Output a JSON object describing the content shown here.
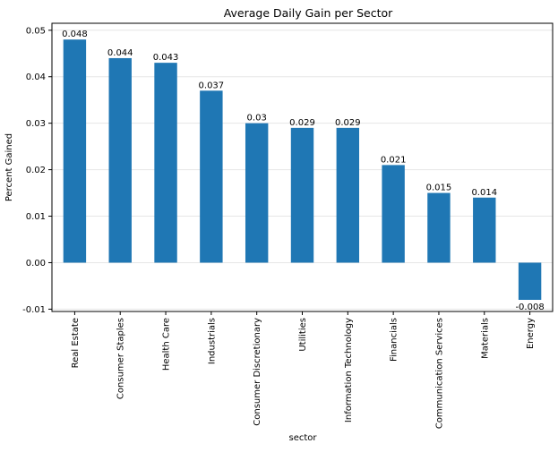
{
  "chart_data": {
    "type": "bar",
    "title": "Average Daily Gain per Sector",
    "xlabel": "sector",
    "ylabel": "Percent Gained",
    "categories": [
      "Real Estate",
      "Consumer Staples",
      "Health Care",
      "Industrials",
      "Consumer Discretionary",
      "Utilities",
      "Information Technology",
      "Financials",
      "Communication Services",
      "Materials",
      "Energy"
    ],
    "values": [
      0.048,
      0.044,
      0.043,
      0.037,
      0.03,
      0.029,
      0.029,
      0.021,
      0.015,
      0.014,
      -0.008
    ],
    "value_labels": [
      "0.048",
      "0.044",
      "0.043",
      "0.037",
      "0.03",
      "0.029",
      "0.029",
      "0.021",
      "0.015",
      "0.014",
      "-0.008"
    ],
    "ylim": [
      -0.0105,
      0.0515
    ],
    "yticks": [
      -0.01,
      0.0,
      0.01,
      0.02,
      0.03,
      0.04,
      0.05
    ],
    "ytick_labels": [
      "-0.01",
      "0.00",
      "0.01",
      "0.02",
      "0.03",
      "0.04",
      "0.05"
    ],
    "grid": "horizontal",
    "legend": "none",
    "colors": {
      "bar": "#1f77b4",
      "grid": "#e6e6e6",
      "axis": "#000000",
      "text": "#000000"
    }
  }
}
